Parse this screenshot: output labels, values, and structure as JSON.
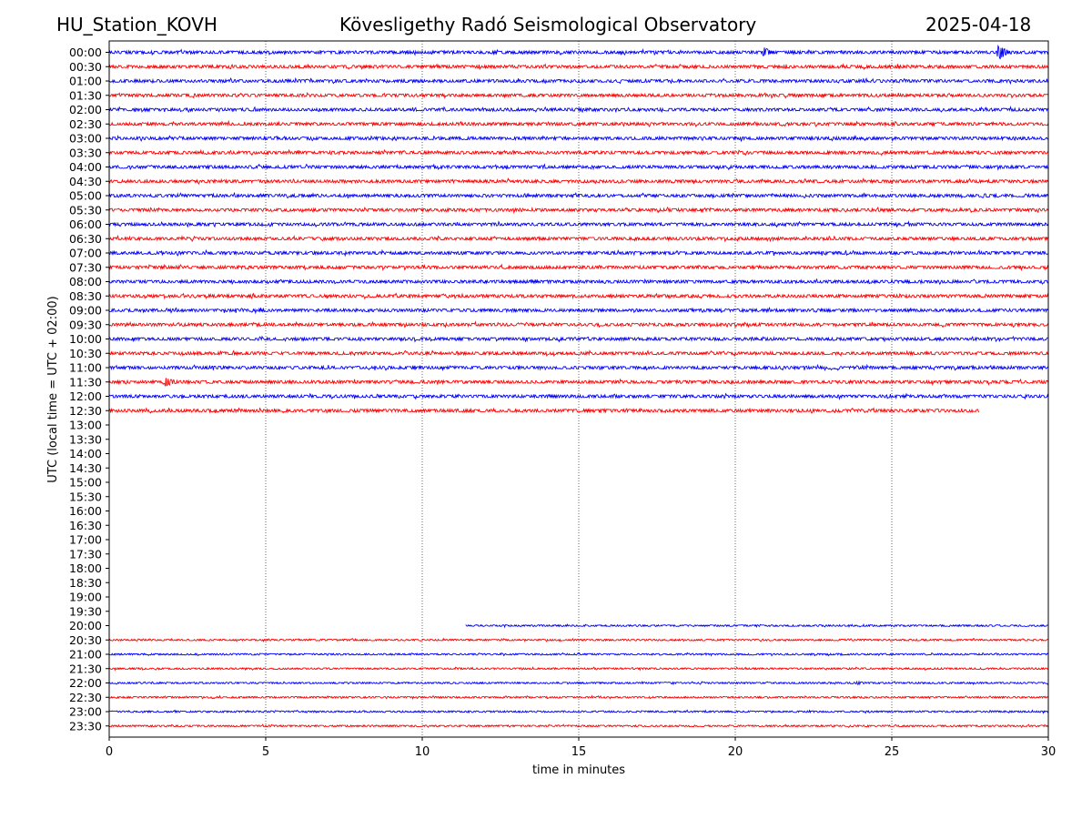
{
  "header": {
    "station": "HU_Station_KOVH",
    "title": "Kövesligethy Radó Seismological Observatory",
    "date": "2025-04-18"
  },
  "chart_data": {
    "type": "line",
    "xlabel": "time in minutes",
    "ylabel": "UTC (local time = UTC + 02:00)",
    "xlim": [
      0,
      30
    ],
    "x_ticks": [
      "0",
      "5",
      "10",
      "15",
      "20",
      "25",
      "30"
    ],
    "x_tick_values": [
      0,
      5,
      10,
      15,
      20,
      25,
      30
    ],
    "grid": "vertical dotted lines at 5-minute ticks",
    "colors": [
      "#0000ff",
      "#ff0000"
    ],
    "rows": [
      {
        "label": "00:00",
        "start": 0,
        "end": 30,
        "events": [
          {
            "t": 20.9,
            "amp": 6
          },
          {
            "t": 28.4,
            "amp": 9
          }
        ]
      },
      {
        "label": "00:30",
        "start": 0,
        "end": 30,
        "events": []
      },
      {
        "label": "01:00",
        "start": 0,
        "end": 30,
        "events": []
      },
      {
        "label": "01:30",
        "start": 0,
        "end": 30,
        "events": []
      },
      {
        "label": "02:00",
        "start": 0,
        "end": 30,
        "events": []
      },
      {
        "label": "02:30",
        "start": 0,
        "end": 30,
        "events": []
      },
      {
        "label": "03:00",
        "start": 0,
        "end": 30,
        "events": []
      },
      {
        "label": "03:30",
        "start": 0,
        "end": 30,
        "events": []
      },
      {
        "label": "04:00",
        "start": 0,
        "end": 30,
        "events": []
      },
      {
        "label": "04:30",
        "start": 0,
        "end": 30,
        "events": []
      },
      {
        "label": "05:00",
        "start": 0,
        "end": 30,
        "events": [
          {
            "t": 27.9,
            "amp": 3
          }
        ]
      },
      {
        "label": "05:30",
        "start": 0,
        "end": 30,
        "events": []
      },
      {
        "label": "06:00",
        "start": 0,
        "end": 30,
        "events": []
      },
      {
        "label": "06:30",
        "start": 0,
        "end": 30,
        "events": []
      },
      {
        "label": "07:00",
        "start": 0,
        "end": 30,
        "events": []
      },
      {
        "label": "07:30",
        "start": 0,
        "end": 30,
        "events": []
      },
      {
        "label": "08:00",
        "start": 0,
        "end": 30,
        "events": []
      },
      {
        "label": "08:30",
        "start": 0,
        "end": 30,
        "events": []
      },
      {
        "label": "09:00",
        "start": 0,
        "end": 30,
        "events": []
      },
      {
        "label": "09:30",
        "start": 0,
        "end": 30,
        "events": []
      },
      {
        "label": "10:00",
        "start": 0,
        "end": 30,
        "events": []
      },
      {
        "label": "10:30",
        "start": 0,
        "end": 30,
        "events": [
          {
            "t": 15.0,
            "amp": 2
          }
        ]
      },
      {
        "label": "11:00",
        "start": 0,
        "end": 30,
        "events": []
      },
      {
        "label": "11:30",
        "start": 0,
        "end": 30,
        "events": [
          {
            "t": 1.8,
            "amp": 6
          }
        ]
      },
      {
        "label": "12:00",
        "start": 0,
        "end": 30,
        "events": []
      },
      {
        "label": "12:30",
        "start": 0,
        "end": 27.8,
        "events": []
      },
      {
        "label": "13:00",
        "start": null,
        "end": null,
        "events": []
      },
      {
        "label": "13:30",
        "start": null,
        "end": null,
        "events": []
      },
      {
        "label": "14:00",
        "start": null,
        "end": null,
        "events": []
      },
      {
        "label": "14:30",
        "start": null,
        "end": null,
        "events": []
      },
      {
        "label": "15:00",
        "start": null,
        "end": null,
        "events": []
      },
      {
        "label": "15:30",
        "start": null,
        "end": null,
        "events": []
      },
      {
        "label": "16:00",
        "start": null,
        "end": null,
        "events": []
      },
      {
        "label": "16:30",
        "start": null,
        "end": null,
        "events": []
      },
      {
        "label": "17:00",
        "start": null,
        "end": null,
        "events": []
      },
      {
        "label": "17:30",
        "start": null,
        "end": null,
        "events": []
      },
      {
        "label": "18:00",
        "start": null,
        "end": null,
        "events": []
      },
      {
        "label": "18:30",
        "start": null,
        "end": null,
        "events": []
      },
      {
        "label": "19:00",
        "start": null,
        "end": null,
        "events": []
      },
      {
        "label": "19:30",
        "start": null,
        "end": null,
        "events": []
      },
      {
        "label": "20:00",
        "start": 11.4,
        "end": 30,
        "events": []
      },
      {
        "label": "20:30",
        "start": 0,
        "end": 30,
        "events": []
      },
      {
        "label": "21:00",
        "start": 0,
        "end": 30,
        "events": []
      },
      {
        "label": "21:30",
        "start": 0,
        "end": 30,
        "events": []
      },
      {
        "label": "22:00",
        "start": 0,
        "end": 30,
        "events": [
          {
            "t": 23.9,
            "amp": 2
          }
        ]
      },
      {
        "label": "22:30",
        "start": 0,
        "end": 30,
        "events": []
      },
      {
        "label": "23:00",
        "start": 0,
        "end": 30,
        "events": []
      },
      {
        "label": "23:30",
        "start": 0,
        "end": 30,
        "events": []
      }
    ]
  }
}
